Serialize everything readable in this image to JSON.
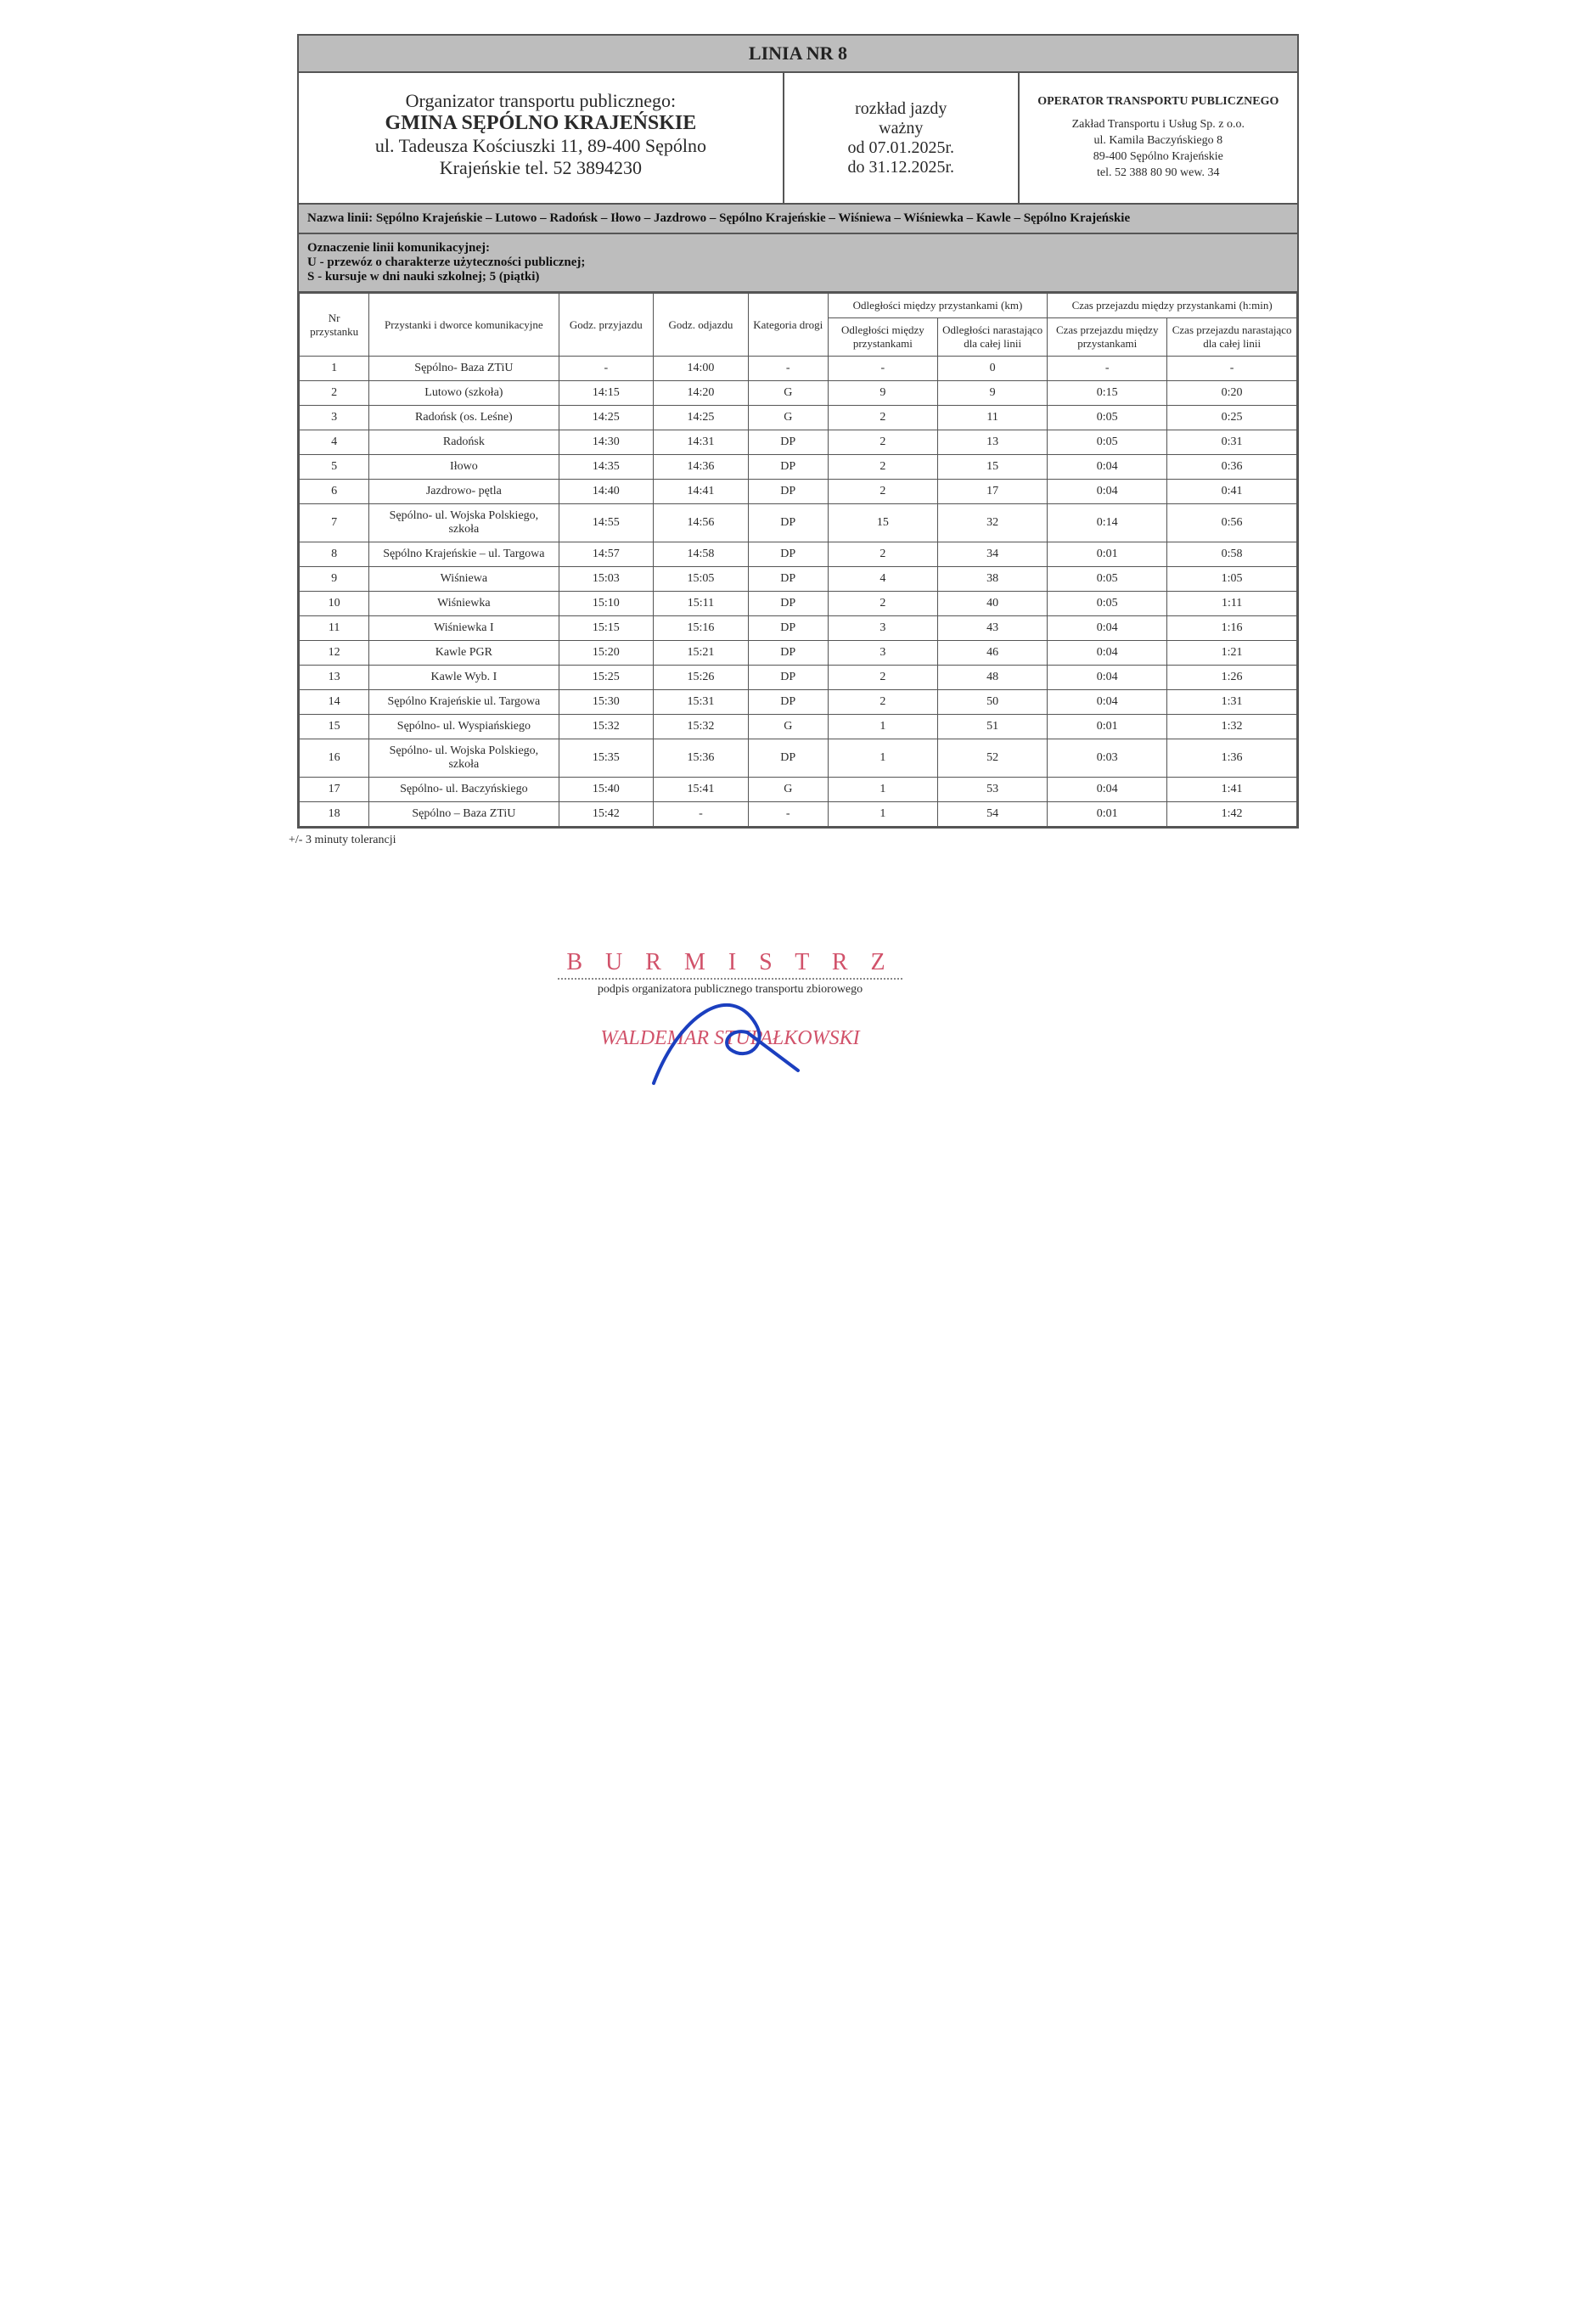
{
  "colors": {
    "band_bg": "#bdbdbd",
    "border": "#555555",
    "text": "#2a2a2a",
    "stamp_pink": "#d1526a",
    "pen_blue": "#1b3fbf"
  },
  "title": "LINIA NR 8",
  "organizer": {
    "line1": "Organizator transportu publicznego:",
    "name": "GMINA SĘPÓLNO KRAJEŃSKIE",
    "addr1": "ul. Tadeusza Kościuszki 11, 89-400 Sępólno",
    "addr2": "Krajeńskie tel. 52 3894230"
  },
  "validity": {
    "l1": "rozkład jazdy",
    "l2": "ważny",
    "l3": "od 07.01.2025r.",
    "l4": "do 31.12.2025r."
  },
  "operator": {
    "title": "OPERATOR TRANSPORTU PUBLICZNEGO",
    "l1": "Zakład Transportu i Usług Sp. z o.o.",
    "l2": "ul. Kamila Baczyńskiego 8",
    "l3": "89-400 Sępólno Krajeńskie",
    "l4": "tel. 52 388 80 90  wew. 34"
  },
  "route_name": "Nazwa linii:  Sępólno Krajeńskie – Lutowo – Radońsk – Iłowo – Jazdrowo – Sępólno Krajeńskie – Wiśniewa – Wiśniewka – Kawle – Sępólno Krajeńskie",
  "codes": {
    "l1": "Oznaczenie linii komunikacyjnej:",
    "l2": "U - przewóz o charakterze użyteczności publicznej;",
    "l3": "S - kursuje w dni nauki szkolnej;  5 (piątki)"
  },
  "columns": {
    "nr": "Nr przystanku",
    "stop": "Przystanki i dworce komunikacyjne",
    "arr": "Godz. przyjazdu",
    "dep": "Godz. odjazdu",
    "road": "Kategoria drogi",
    "dist_group": "Odległości między przystankami (km)",
    "time_group": "Czas przejazdu między przystankami (h:min)",
    "dist_between": "Odległości między przystankami",
    "dist_cum": "Odległości narastająco dla całej linii",
    "time_between": "Czas przejazdu między przystankami",
    "time_cum": "Czas przejazdu narastająco dla całej linii"
  },
  "rows": [
    {
      "nr": "1",
      "stop": "Sępólno- Baza ZTiU",
      "arr": "-",
      "dep": "14:00",
      "road": "-",
      "db": "-",
      "dc": "0",
      "tb": "-",
      "tc": "-"
    },
    {
      "nr": "2",
      "stop": "Lutowo (szkoła)",
      "arr": "14:15",
      "dep": "14:20",
      "road": "G",
      "db": "9",
      "dc": "9",
      "tb": "0:15",
      "tc": "0:20"
    },
    {
      "nr": "3",
      "stop": "Radońsk (os. Leśne)",
      "arr": "14:25",
      "dep": "14:25",
      "road": "G",
      "db": "2",
      "dc": "11",
      "tb": "0:05",
      "tc": "0:25"
    },
    {
      "nr": "4",
      "stop": "Radońsk",
      "arr": "14:30",
      "dep": "14:31",
      "road": "DP",
      "db": "2",
      "dc": "13",
      "tb": "0:05",
      "tc": "0:31"
    },
    {
      "nr": "5",
      "stop": "Iłowo",
      "arr": "14:35",
      "dep": "14:36",
      "road": "DP",
      "db": "2",
      "dc": "15",
      "tb": "0:04",
      "tc": "0:36"
    },
    {
      "nr": "6",
      "stop": "Jazdrowo- pętla",
      "arr": "14:40",
      "dep": "14:41",
      "road": "DP",
      "db": "2",
      "dc": "17",
      "tb": "0:04",
      "tc": "0:41"
    },
    {
      "nr": "7",
      "stop": "Sępólno- ul. Wojska Polskiego, szkoła",
      "arr": "14:55",
      "dep": "14:56",
      "road": "DP",
      "db": "15",
      "dc": "32",
      "tb": "0:14",
      "tc": "0:56"
    },
    {
      "nr": "8",
      "stop": "Sępólno Krajeńskie – ul. Targowa",
      "arr": "14:57",
      "dep": "14:58",
      "road": "DP",
      "db": "2",
      "dc": "34",
      "tb": "0:01",
      "tc": "0:58"
    },
    {
      "nr": "9",
      "stop": "Wiśniewa",
      "arr": "15:03",
      "dep": "15:05",
      "road": "DP",
      "db": "4",
      "dc": "38",
      "tb": "0:05",
      "tc": "1:05"
    },
    {
      "nr": "10",
      "stop": "Wiśniewka",
      "arr": "15:10",
      "dep": "15:11",
      "road": "DP",
      "db": "2",
      "dc": "40",
      "tb": "0:05",
      "tc": "1:11"
    },
    {
      "nr": "11",
      "stop": "Wiśniewka I",
      "arr": "15:15",
      "dep": "15:16",
      "road": "DP",
      "db": "3",
      "dc": "43",
      "tb": "0:04",
      "tc": "1:16"
    },
    {
      "nr": "12",
      "stop": "Kawle PGR",
      "arr": "15:20",
      "dep": "15:21",
      "road": "DP",
      "db": "3",
      "dc": "46",
      "tb": "0:04",
      "tc": "1:21"
    },
    {
      "nr": "13",
      "stop": "Kawle Wyb. I",
      "arr": "15:25",
      "dep": "15:26",
      "road": "DP",
      "db": "2",
      "dc": "48",
      "tb": "0:04",
      "tc": "1:26"
    },
    {
      "nr": "14",
      "stop": "Sępólno Krajeńskie ul. Targowa",
      "arr": "15:30",
      "dep": "15:31",
      "road": "DP",
      "db": "2",
      "dc": "50",
      "tb": "0:04",
      "tc": "1:31"
    },
    {
      "nr": "15",
      "stop": "Sępólno- ul. Wyspiańskiego",
      "arr": "15:32",
      "dep": "15:32",
      "road": "G",
      "db": "1",
      "dc": "51",
      "tb": "0:01",
      "tc": "1:32"
    },
    {
      "nr": "16",
      "stop": "Sępólno- ul. Wojska Polskiego, szkoła",
      "arr": "15:35",
      "dep": "15:36",
      "road": "DP",
      "db": "1",
      "dc": "52",
      "tb": "0:03",
      "tc": "1:36"
    },
    {
      "nr": "17",
      "stop": "Sępólno- ul. Baczyńskiego",
      "arr": "15:40",
      "dep": "15:41",
      "road": "G",
      "db": "1",
      "dc": "53",
      "tb": "0:04",
      "tc": "1:41"
    },
    {
      "nr": "18",
      "stop": "Sępólno – Baza ZTiU",
      "arr": "15:42",
      "dep": "-",
      "road": "-",
      "db": "1",
      "dc": "54",
      "tb": "0:01",
      "tc": "1:42"
    }
  ],
  "tolerance_note": "+/- 3 minuty tolerancji",
  "signature": {
    "title": "B U R M I S T R Z",
    "caption": "podpis organizatora publicznego transportu zbiorowego",
    "name": "WALDEMAR STUPAŁKOWSKI"
  }
}
